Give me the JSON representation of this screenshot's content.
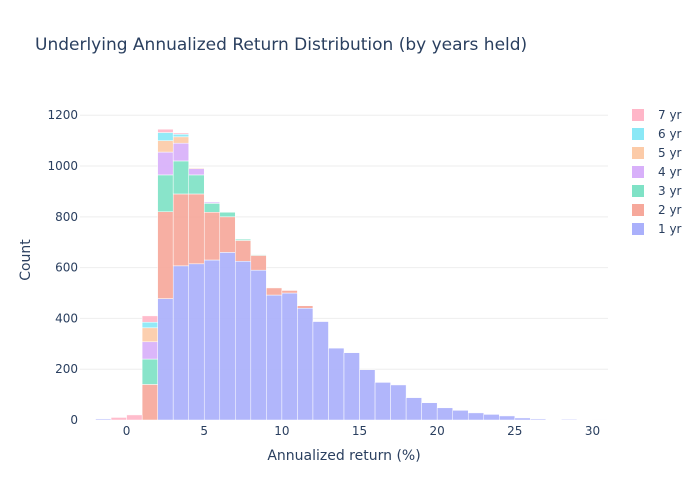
{
  "chart_data": {
    "type": "bar",
    "title": "Underlying Annualized Return Distribution (by years held)",
    "xlabel": "Annualized return (%)",
    "ylabel": "Count",
    "barmode": "stack",
    "grid": true,
    "legend_position": "right",
    "xlim": [
      -3,
      31
    ],
    "ylim": [
      0,
      1260
    ],
    "x_ticks": [
      0,
      5,
      10,
      15,
      20,
      25,
      30
    ],
    "y_ticks": [
      0,
      200,
      400,
      600,
      800,
      1000,
      1200
    ],
    "x": [
      -1.5,
      -0.5,
      0.5,
      1.5,
      2.5,
      3.5,
      4.5,
      5.5,
      6.5,
      7.5,
      8.5,
      9.5,
      10.5,
      11.5,
      12.5,
      13.5,
      14.5,
      15.5,
      16.5,
      17.5,
      18.5,
      19.5,
      20.5,
      21.5,
      22.5,
      23.5,
      24.5,
      25.5,
      26.5,
      27.5,
      28.5,
      29.5,
      30.5
    ],
    "series": [
      {
        "name": "1 yr",
        "color": "#aab0fb",
        "values": [
          4,
          0,
          0,
          0,
          478,
          607,
          615,
          630,
          660,
          625,
          590,
          492,
          500,
          440,
          388,
          283,
          265,
          198,
          148,
          138,
          88,
          68,
          48,
          38,
          28,
          22,
          16,
          8,
          4,
          1,
          3,
          0,
          2
        ]
      },
      {
        "name": "2 yr",
        "color": "#f6a89b",
        "values": [
          0,
          0,
          0,
          140,
          342,
          283,
          275,
          188,
          140,
          82,
          58,
          28,
          10,
          10,
          2,
          0,
          0,
          0,
          0,
          0,
          0,
          0,
          0,
          0,
          0,
          0,
          0,
          0,
          0,
          0,
          0,
          0,
          0
        ]
      },
      {
        "name": "3 yr",
        "color": "#7fe2c6",
        "values": [
          0,
          0,
          0,
          100,
          145,
          130,
          75,
          35,
          18,
          5,
          3,
          0,
          0,
          0,
          0,
          0,
          0,
          0,
          0,
          0,
          0,
          0,
          0,
          0,
          0,
          0,
          0,
          0,
          0,
          0,
          0,
          0,
          0
        ]
      },
      {
        "name": "4 yr",
        "color": "#d8b0fa",
        "values": [
          0,
          0,
          0,
          68,
          90,
          70,
          25,
          5,
          2,
          0,
          0,
          0,
          0,
          0,
          0,
          0,
          0,
          0,
          0,
          0,
          0,
          0,
          0,
          0,
          0,
          0,
          0,
          0,
          0,
          0,
          0,
          0,
          0
        ]
      },
      {
        "name": "5 yr",
        "color": "#fccba8",
        "values": [
          0,
          0,
          0,
          55,
          45,
          25,
          3,
          0,
          0,
          0,
          0,
          0,
          0,
          0,
          0,
          0,
          0,
          0,
          0,
          0,
          0,
          0,
          0,
          0,
          0,
          0,
          0,
          0,
          0,
          0,
          0,
          0,
          0
        ]
      },
      {
        "name": "6 yr",
        "color": "#8ae8f6",
        "values": [
          0,
          0,
          0,
          22,
          32,
          10,
          0,
          0,
          0,
          0,
          0,
          0,
          0,
          0,
          0,
          0,
          0,
          0,
          0,
          0,
          0,
          0,
          0,
          0,
          0,
          0,
          0,
          0,
          0,
          0,
          0,
          0,
          0
        ]
      },
      {
        "name": "7 yr",
        "color": "#ffb6c8",
        "values": [
          0,
          10,
          20,
          25,
          13,
          5,
          0,
          0,
          0,
          0,
          0,
          0,
          0,
          0,
          0,
          0,
          0,
          0,
          0,
          0,
          0,
          0,
          0,
          0,
          0,
          0,
          0,
          0,
          0,
          0,
          0,
          0,
          0
        ]
      }
    ],
    "legend_order": [
      "7 yr",
      "6 yr",
      "5 yr",
      "4 yr",
      "3 yr",
      "2 yr",
      "1 yr"
    ]
  }
}
